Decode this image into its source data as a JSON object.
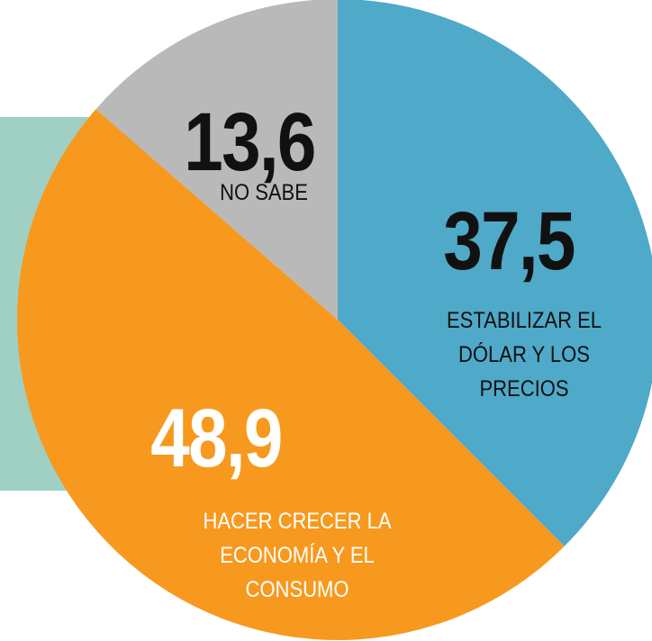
{
  "chart_data": {
    "type": "pie",
    "categories": [
      "ESTABILIZAR EL DÓLAR Y LOS PRECIOS",
      "HACER CRECER LA ECONOMÍA Y EL CONSUMO",
      "NO SABE"
    ],
    "values": [
      37.5,
      48.9,
      13.6
    ],
    "value_labels": [
      "37,5",
      "48,9",
      "13,6"
    ],
    "colors": [
      "#4fa9c8",
      "#f7991e",
      "#b9b9ba"
    ],
    "value_label_colors": [
      "#111111",
      "#ffffff",
      "#111111"
    ],
    "category_label_colors": [
      "#111111",
      "#ffffff",
      "#111111"
    ]
  }
}
